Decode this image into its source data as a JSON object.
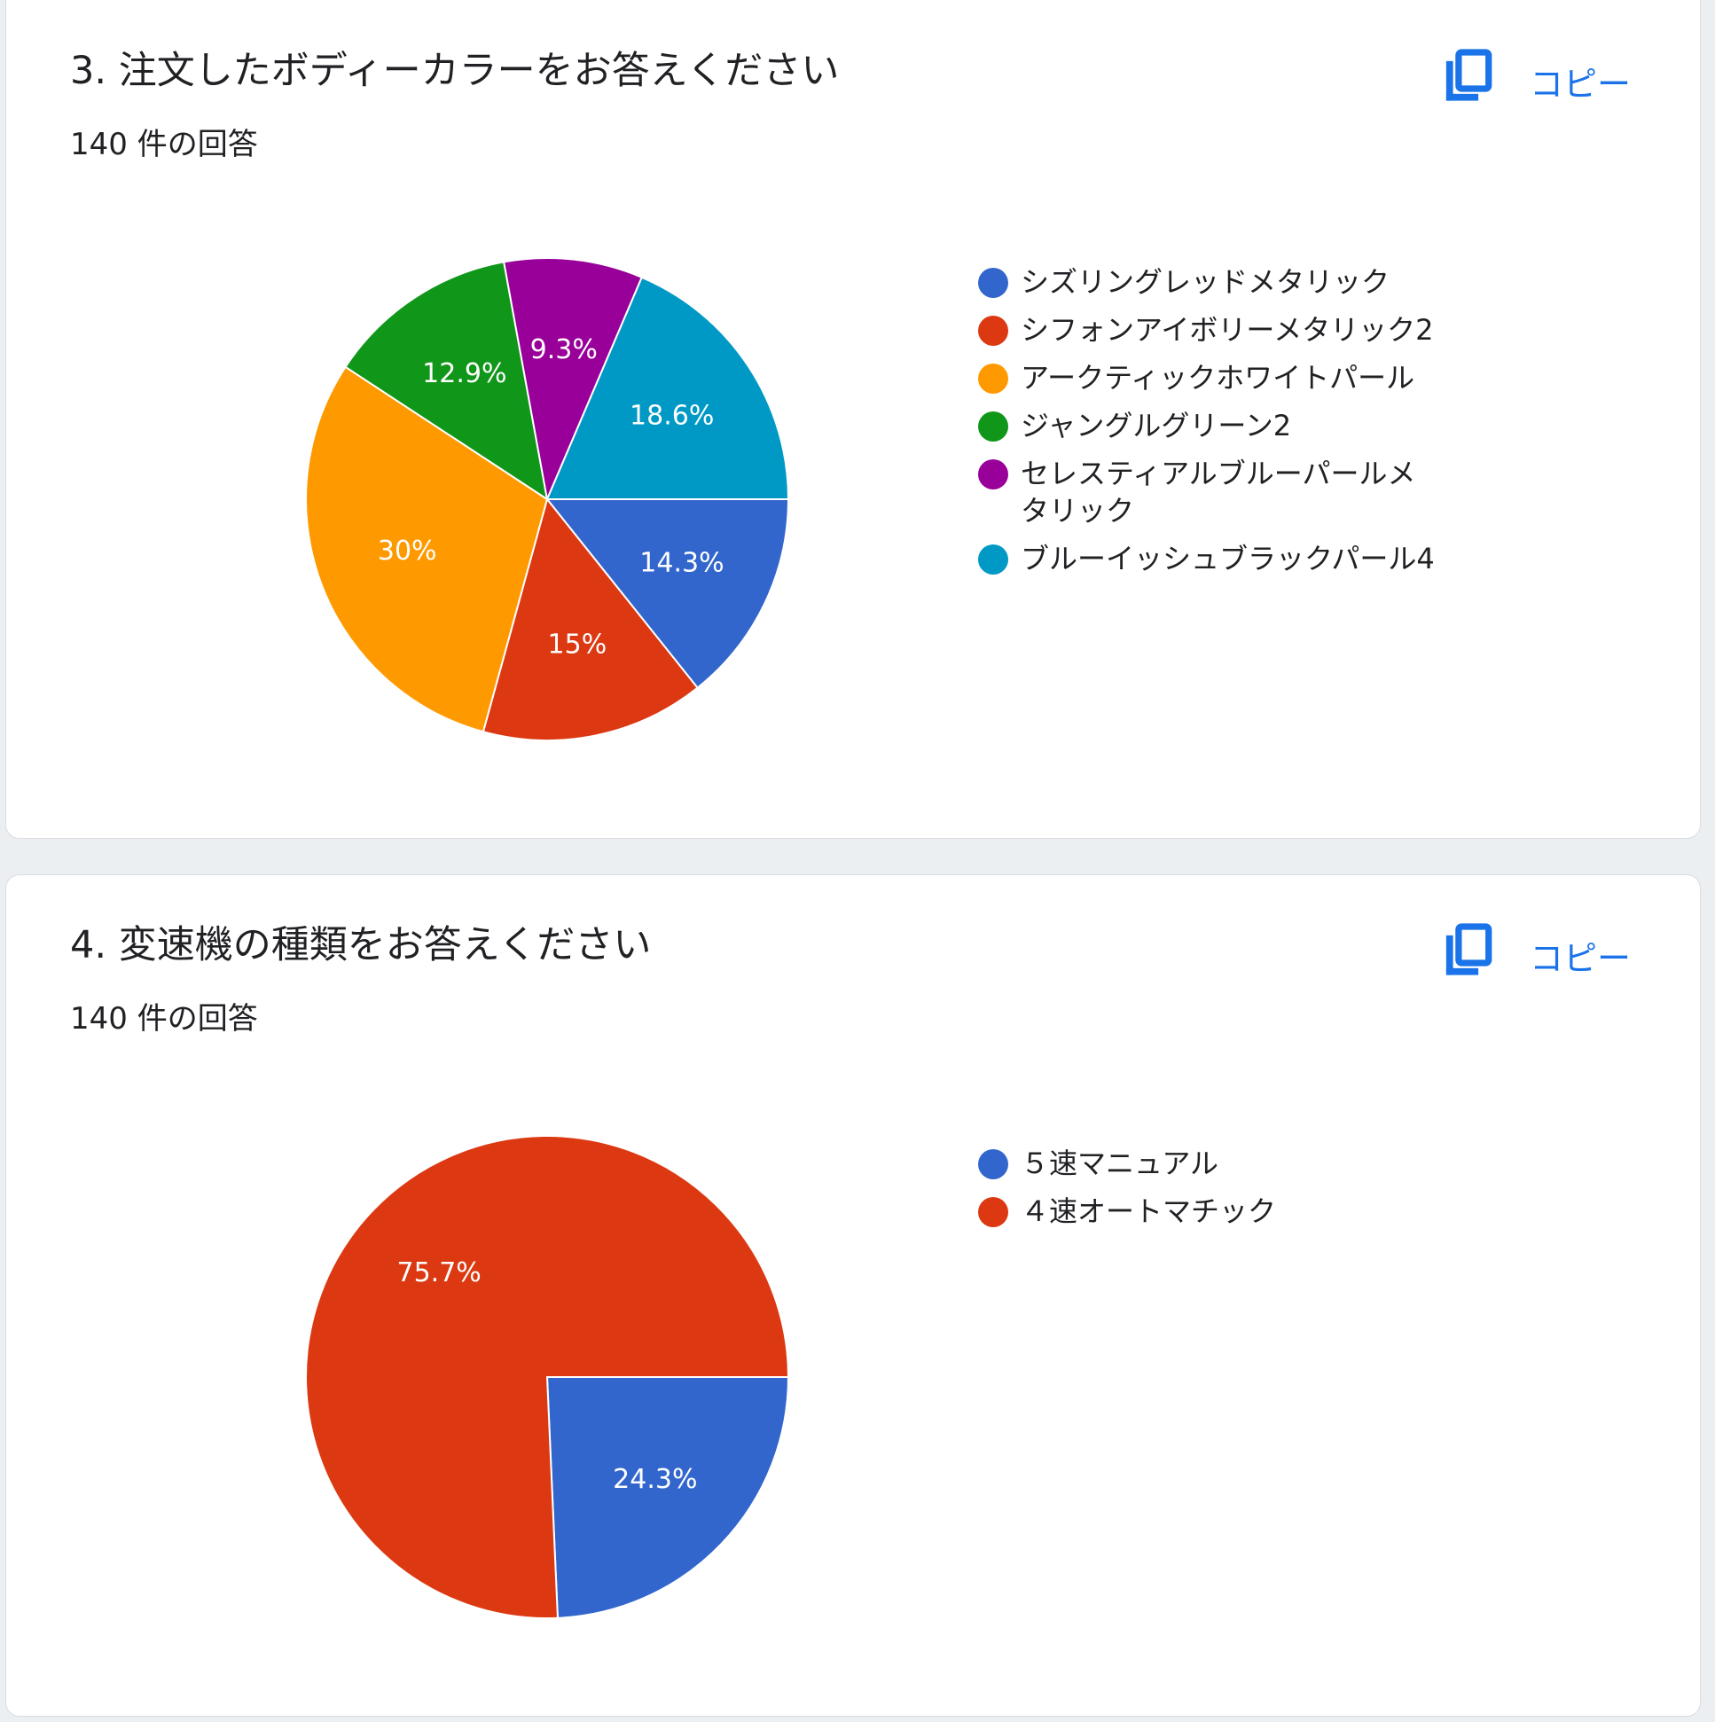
{
  "copy_label": "コピー",
  "chart_data": [
    {
      "type": "pie",
      "title": "3. 注文したボディーカラーをお答えください",
      "response_count": "140 件の回答",
      "legend_position": "right",
      "slices": [
        {
          "name": "シズリングレッドメタリック",
          "value": 14.3,
          "label": "14.3%",
          "color": "#3366cc"
        },
        {
          "name": "シフォンアイボリーメタリック2",
          "value": 15,
          "label": "15%",
          "color": "#dc3912"
        },
        {
          "name": "アークティックホワイトパール",
          "value": 30,
          "label": "30%",
          "color": "#ff9900"
        },
        {
          "name": "ジャングルグリーン2",
          "value": 12.9,
          "label": "12.9%",
          "color": "#109618"
        },
        {
          "name": "セレスティアルブルーパールメタリック",
          "value": 9.3,
          "label": "9.3%",
          "color": "#990099"
        },
        {
          "name": "ブルーイッシュブラックパール4",
          "value": 18.6,
          "label": "18.6%",
          "color": "#0099c6"
        }
      ]
    },
    {
      "type": "pie",
      "title": "4. 変速機の種類をお答えください",
      "response_count": "140 件の回答",
      "legend_position": "right",
      "slices": [
        {
          "name": "５速マニュアル",
          "value": 24.3,
          "label": "24.3%",
          "color": "#3366cc"
        },
        {
          "name": "４速オートマチック",
          "value": 75.7,
          "label": "75.7%",
          "color": "#dc3912"
        }
      ]
    }
  ]
}
